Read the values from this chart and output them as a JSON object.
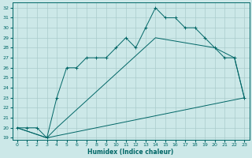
{
  "xlabel": "Humidex (Indice chaleur)",
  "ylabel": "",
  "background_color": "#cce8e8",
  "line_color": "#006666",
  "grid_color": "#aacccc",
  "xlim": [
    -0.5,
    23.5
  ],
  "ylim": [
    18.8,
    32.5
  ],
  "yticks": [
    19,
    20,
    21,
    22,
    23,
    24,
    25,
    26,
    27,
    28,
    29,
    30,
    31,
    32
  ],
  "xticks": [
    0,
    1,
    2,
    3,
    4,
    5,
    6,
    7,
    8,
    9,
    10,
    11,
    12,
    13,
    14,
    15,
    16,
    17,
    18,
    19,
    20,
    21,
    22,
    23
  ],
  "curve1_x": [
    0,
    1,
    2,
    3,
    4,
    5,
    6,
    7,
    8,
    9,
    10,
    11,
    12,
    13,
    14,
    15,
    16,
    17,
    18,
    19,
    20,
    21,
    22,
    23
  ],
  "curve1_y": [
    20,
    20,
    20,
    19,
    23,
    26,
    26,
    27,
    27,
    27,
    28,
    29,
    28,
    30,
    32,
    31,
    31,
    30,
    30,
    29,
    28,
    27,
    27,
    23
  ],
  "curve2_x": [
    0,
    3,
    4,
    14,
    20,
    22,
    23
  ],
  "curve2_y": [
    20,
    19,
    20,
    29,
    28,
    27,
    23
  ],
  "curve3_x": [
    0,
    3,
    23
  ],
  "curve3_y": [
    20,
    19,
    23
  ]
}
